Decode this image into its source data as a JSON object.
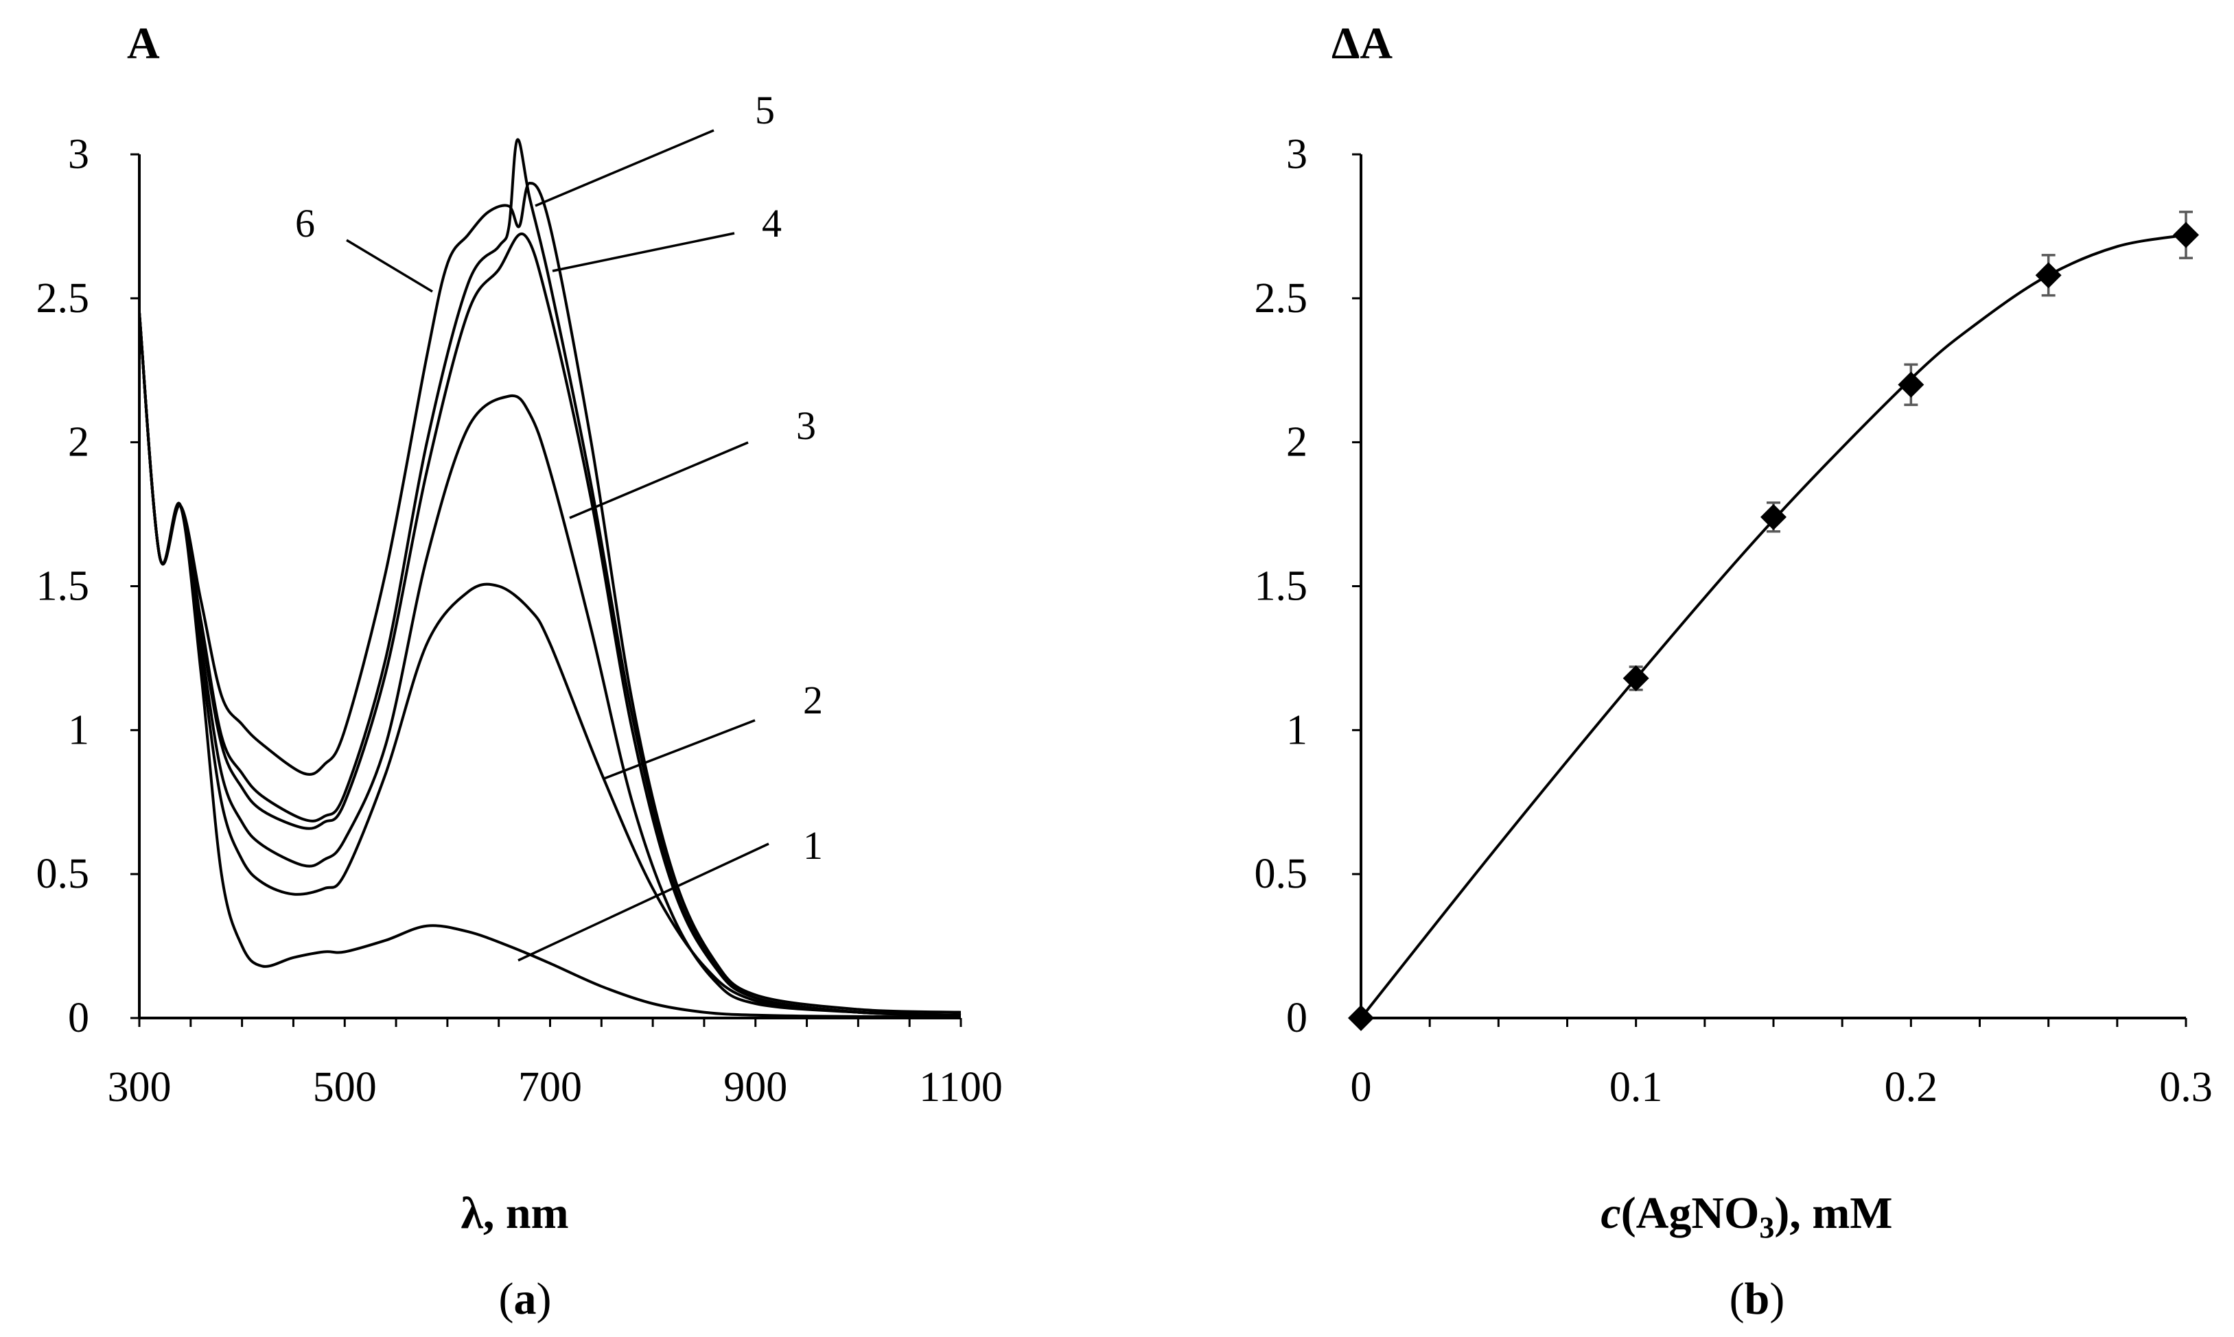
{
  "chart_data": [
    {
      "type": "line",
      "panel_label": "(a)",
      "ylabel": "A",
      "xlabel": "λ, nm",
      "xlim": [
        300,
        1100
      ],
      "ylim": [
        0,
        3
      ],
      "xticks": [
        300,
        500,
        700,
        900,
        1100
      ],
      "yticks": [
        "0",
        "0.5",
        "1",
        "1.5",
        "2",
        "2.5",
        "3"
      ],
      "series": [
        {
          "name": "1",
          "x": [
            300,
            320,
            340,
            360,
            380,
            400,
            420,
            450,
            480,
            500,
            540,
            580,
            620,
            660,
            700,
            750,
            800,
            850,
            900,
            1000,
            1100
          ],
          "y": [
            2.45,
            1.6,
            1.78,
            1.2,
            0.5,
            0.25,
            0.18,
            0.21,
            0.23,
            0.23,
            0.27,
            0.32,
            0.3,
            0.25,
            0.19,
            0.11,
            0.05,
            0.02,
            0.01,
            0.005,
            0.005
          ]
        },
        {
          "name": "2",
          "x": [
            300,
            320,
            340,
            360,
            380,
            400,
            420,
            450,
            480,
            500,
            540,
            580,
            620,
            650,
            680,
            700,
            750,
            800,
            850,
            900,
            1000,
            1100
          ],
          "y": [
            2.45,
            1.6,
            1.78,
            1.25,
            0.75,
            0.55,
            0.47,
            0.43,
            0.45,
            0.5,
            0.85,
            1.3,
            1.48,
            1.5,
            1.42,
            1.3,
            0.85,
            0.45,
            0.18,
            0.06,
            0.02,
            0.01
          ]
        },
        {
          "name": "3",
          "x": [
            300,
            320,
            340,
            360,
            380,
            400,
            420,
            460,
            480,
            500,
            540,
            580,
            620,
            660,
            680,
            700,
            740,
            780,
            820,
            860,
            900,
            1000,
            1100
          ],
          "y": [
            2.45,
            1.6,
            1.78,
            1.3,
            0.85,
            0.68,
            0.6,
            0.53,
            0.55,
            0.62,
            0.95,
            1.6,
            2.05,
            2.16,
            2.1,
            1.9,
            1.35,
            0.75,
            0.35,
            0.13,
            0.05,
            0.02,
            0.01
          ]
        },
        {
          "name": "4",
          "x": [
            300,
            320,
            340,
            360,
            380,
            400,
            420,
            460,
            480,
            500,
            540,
            580,
            620,
            650,
            675,
            700,
            740,
            780,
            820,
            860,
            900,
            1000,
            1100
          ],
          "y": [
            2.45,
            1.6,
            1.78,
            1.35,
            0.95,
            0.8,
            0.72,
            0.66,
            0.68,
            0.75,
            1.2,
            1.9,
            2.45,
            2.6,
            2.72,
            2.45,
            1.8,
            1.0,
            0.45,
            0.18,
            0.07,
            0.02,
            0.01
          ]
        },
        {
          "name": "5",
          "x": [
            300,
            320,
            340,
            360,
            380,
            400,
            420,
            460,
            480,
            500,
            540,
            580,
            620,
            650,
            660,
            668,
            680,
            700,
            740,
            780,
            820,
            860,
            900,
            1000,
            1100
          ],
          "y": [
            2.45,
            1.6,
            1.78,
            1.38,
            0.98,
            0.85,
            0.77,
            0.69,
            0.7,
            0.78,
            1.25,
            2.0,
            2.55,
            2.68,
            2.75,
            3.05,
            2.85,
            2.55,
            1.85,
            1.05,
            0.47,
            0.19,
            0.07,
            0.02,
            0.01
          ]
        },
        {
          "name": "6",
          "x": [
            300,
            320,
            340,
            360,
            380,
            400,
            420,
            460,
            480,
            500,
            540,
            580,
            600,
            620,
            640,
            660,
            670,
            680,
            700,
            740,
            780,
            820,
            860,
            900,
            1000,
            1100
          ],
          "y": [
            2.45,
            1.6,
            1.78,
            1.45,
            1.12,
            1.02,
            0.95,
            0.85,
            0.88,
            1.0,
            1.55,
            2.3,
            2.62,
            2.72,
            2.8,
            2.82,
            2.75,
            2.9,
            2.75,
            2.0,
            1.1,
            0.5,
            0.2,
            0.08,
            0.03,
            0.02
          ]
        }
      ],
      "annotations": [
        "1",
        "2",
        "3",
        "4",
        "5",
        "6"
      ]
    },
    {
      "type": "scatter",
      "panel_label": "(b)",
      "ylabel": "ΔA",
      "xlabel_main": "c",
      "xlabel_rest": "(AgNO",
      "xlabel_sub": "3",
      "xlabel_tail": "), mM",
      "xlim": [
        0,
        0.3
      ],
      "ylim": [
        0,
        3
      ],
      "xticks": [
        "0",
        "0.1",
        "0.2",
        "0.3"
      ],
      "yticks": [
        "0",
        "0.5",
        "1",
        "1.5",
        "2",
        "2.5",
        "3"
      ],
      "points": [
        {
          "x": 0,
          "y": 0,
          "err": 0
        },
        {
          "x": 0.1,
          "y": 1.18,
          "err": 0.04
        },
        {
          "x": 0.15,
          "y": 1.74,
          "err": 0.05
        },
        {
          "x": 0.2,
          "y": 2.2,
          "err": 0.07
        },
        {
          "x": 0.25,
          "y": 2.58,
          "err": 0.07
        },
        {
          "x": 0.3,
          "y": 2.72,
          "err": 0.08
        }
      ],
      "fit": {
        "x": [
          0,
          0.05,
          0.1,
          0.15,
          0.2,
          0.225,
          0.25,
          0.275,
          0.3
        ],
        "y": [
          0,
          0.6,
          1.18,
          1.73,
          2.22,
          2.42,
          2.58,
          2.68,
          2.72
        ]
      }
    }
  ]
}
